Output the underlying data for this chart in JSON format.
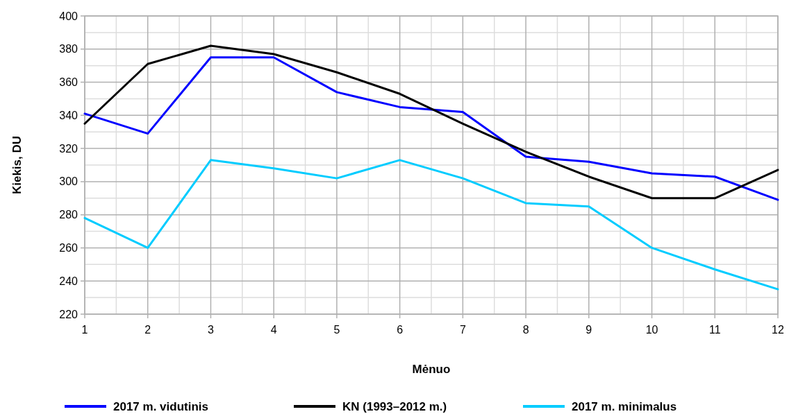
{
  "chart_data": {
    "type": "line",
    "xlabel": "Mėnuo",
    "ylabel": "Kiekis, DU",
    "x": [
      1,
      2,
      3,
      4,
      5,
      6,
      7,
      8,
      9,
      10,
      11,
      12
    ],
    "xlim": [
      1,
      12
    ],
    "xticks": [
      1,
      2,
      3,
      4,
      5,
      6,
      7,
      8,
      9,
      10,
      11,
      12
    ],
    "ylim": [
      220,
      400
    ],
    "yticks": [
      220,
      240,
      260,
      280,
      300,
      320,
      340,
      360,
      380,
      400
    ],
    "grid": true,
    "legend": "bottom",
    "marker": "none",
    "line_style": "solid",
    "series": [
      {
        "name": "2017 m. vidutinis",
        "color": "#0000ff",
        "values": [
          341,
          329,
          375,
          375,
          354,
          345,
          342,
          315,
          312,
          305,
          303,
          289
        ]
      },
      {
        "name": "KN (1993–2012 m.)",
        "color": "#000000",
        "values": [
          335,
          371,
          382,
          377,
          366,
          353,
          335,
          318,
          303,
          290,
          290,
          307
        ]
      },
      {
        "name": "2017 m. minimalus",
        "color": "#00ccff",
        "values": [
          278,
          260,
          313,
          308,
          302,
          313,
          302,
          287,
          285,
          260,
          247,
          235
        ]
      }
    ]
  }
}
